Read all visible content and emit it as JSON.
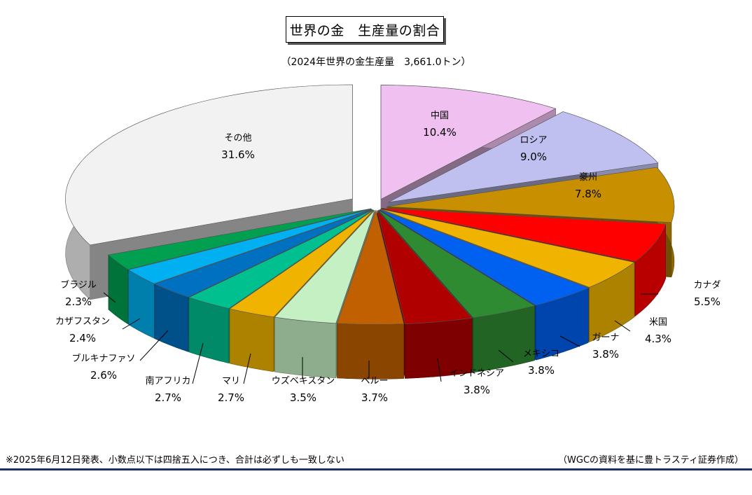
{
  "chart_data": {
    "type": "pie",
    "title": "世界の金　生産量の割合",
    "subtitle": "（2024年世界の金生産量　3,661.0トン）",
    "slices": [
      {
        "label": "中国",
        "value": 10.4,
        "display": "10.4%",
        "color": "#f0c0f0"
      },
      {
        "label": "ロシア",
        "value": 9.0,
        "display": "9.0%",
        "color": "#c0c0f0"
      },
      {
        "label": "豪州",
        "value": 7.8,
        "display": "7.8%",
        "color": "#c89000"
      },
      {
        "label": "カナダ",
        "value": 5.5,
        "display": "5.5%",
        "color": "#ff0000"
      },
      {
        "label": "米国",
        "value": 4.3,
        "display": "4.3%",
        "color": "#f0b400"
      },
      {
        "label": "ガーナ",
        "value": 3.8,
        "display": "3.8%",
        "color": "#0060f0"
      },
      {
        "label": "メキシコ",
        "value": 3.8,
        "display": "3.8%",
        "color": "#2e8b32"
      },
      {
        "label": "インドネシア",
        "value": 3.8,
        "display": "3.8%",
        "color": "#b00000"
      },
      {
        "label": "ペルー",
        "value": 3.7,
        "display": "3.7%",
        "color": "#c06000"
      },
      {
        "label": "ウズベキスタン",
        "value": 3.5,
        "display": "3.5%",
        "color": "#c4f0c4"
      },
      {
        "label": "マリ",
        "value": 2.7,
        "display": "2.7%",
        "color": "#f0b400"
      },
      {
        "label": "南アフリカ",
        "value": 2.7,
        "display": "2.7%",
        "color": "#00c090"
      },
      {
        "label": "ブルキナファソ",
        "value": 2.6,
        "display": "2.6%",
        "color": "#0070c0"
      },
      {
        "label": "カザフスタン",
        "value": 2.4,
        "display": "2.4%",
        "color": "#00b0f0"
      },
      {
        "label": "ブラジル",
        "value": 2.3,
        "display": "2.3%",
        "color": "#00a050"
      },
      {
        "label": "その他",
        "value": 31.6,
        "display": "31.6%",
        "color": "#f2f2f2"
      }
    ]
  },
  "footnote": "※2025年6月12日発表、小数点以下は四捨五入につき、合計は必ずしも一致しない",
  "source": "（WGCの資料を基に豊トラスティ証券作成）"
}
